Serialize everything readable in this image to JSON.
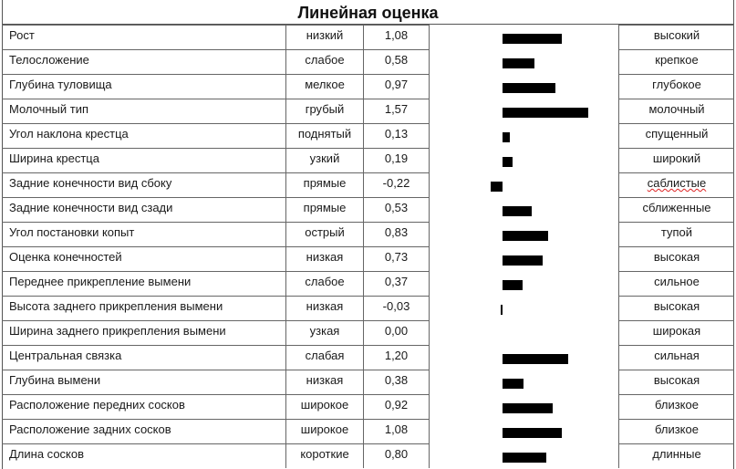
{
  "title": "Линейная оценка",
  "rows": [
    {
      "trait": "Рост",
      "low": "низкий",
      "value": "1,08",
      "high": "высокий"
    },
    {
      "trait": "Телосложение",
      "low": "слабое",
      "value": "0,58",
      "high": "крепкое"
    },
    {
      "trait": "Глубина туловища",
      "low": "мелкое",
      "value": "0,97",
      "high": "глубокое"
    },
    {
      "trait": "Молочный тип",
      "low": "грубый",
      "value": "1,57",
      "high": "молочный"
    },
    {
      "trait": "Угол наклона крестца",
      "low": "поднятый",
      "value": "0,13",
      "high": "спущенный"
    },
    {
      "trait": "Ширина крестца",
      "low": "узкий",
      "value": "0,19",
      "high": "широкий"
    },
    {
      "trait": "Задние конечности вид сбоку",
      "low": "прямые",
      "value": "-0,22",
      "high": "саблистые"
    },
    {
      "trait": "Задние конечности вид сзади",
      "low": "прямые",
      "value": "0,53",
      "high": "сближенные"
    },
    {
      "trait": "Угол постановки копыт",
      "low": "острый",
      "value": "0,83",
      "high": "тупой"
    },
    {
      "trait": "Оценка конечностей",
      "low": "низкая",
      "value": "0,73",
      "high": "высокая"
    },
    {
      "trait": "Переднее прикрепление вымени",
      "low": "слабое",
      "value": "0,37",
      "high": "сильное"
    },
    {
      "trait": "Высота заднего прикрепления вымени",
      "low": "низкая",
      "value": "-0,03",
      "high": "высокая"
    },
    {
      "trait": "Ширина заднего прикрепления вымени",
      "low": "узкая",
      "value": "0,00",
      "high": "широкая"
    },
    {
      "trait": "Центральная связка",
      "low": "слабая",
      "value": "1,20",
      "high": "сильная"
    },
    {
      "trait": "Глубина вымени",
      "low": "низкая",
      "value": "0,38",
      "high": "высокая"
    },
    {
      "trait": "Расположение передних сосков",
      "low": "широкое",
      "value": "0,92",
      "high": "близкое"
    },
    {
      "trait": "Расположение задних сосков",
      "low": "широкое",
      "value": "1,08",
      "high": "близкое"
    },
    {
      "trait": "Длина сосков",
      "low": "короткие",
      "value": "0,80",
      "high": "длинные"
    }
  ],
  "chart_data": {
    "type": "bar",
    "orientation": "horizontal",
    "title": "Линейная оценка",
    "categories": [
      "Рост",
      "Телосложение",
      "Глубина туловища",
      "Молочный тип",
      "Угол наклона крестца",
      "Ширина крестца",
      "Задние конечности вид сбоку",
      "Задние конечности вид сзади",
      "Угол постановки копыт",
      "Оценка конечностей",
      "Переднее прикрепление вымени",
      "Высота заднего прикрепления вымени",
      "Ширина заднего прикрепления вымени",
      "Центральная связка",
      "Глубина вимени",
      "Расположение передних сосков",
      "Расположение задних сосков",
      "Длина сосков"
    ],
    "values": [
      1.08,
      0.58,
      0.97,
      1.57,
      0.13,
      0.19,
      -0.22,
      0.53,
      0.83,
      0.73,
      0.37,
      -0.03,
      0.0,
      1.2,
      0.38,
      0.92,
      1.08,
      0.8
    ],
    "low_labels": [
      "низкий",
      "слабое",
      "мелкое",
      "грубый",
      "поднятый",
      "узкий",
      "прямые",
      "прямые",
      "острый",
      "низкая",
      "слабое",
      "низкая",
      "узкая",
      "слабая",
      "низкая",
      "широкое",
      "широкое",
      "короткие"
    ],
    "high_labels": [
      "высокий",
      "крепкое",
      "глубокое",
      "молочный",
      "спущенный",
      "широкий",
      "саблистые",
      "сближенные",
      "тупой",
      "высокая",
      "сильное",
      "высокая",
      "широкая",
      "сильная",
      "высокая",
      "близкое",
      "близкое",
      "длинные"
    ],
    "bar_color": "#000000",
    "grid": false,
    "legend": "none"
  }
}
